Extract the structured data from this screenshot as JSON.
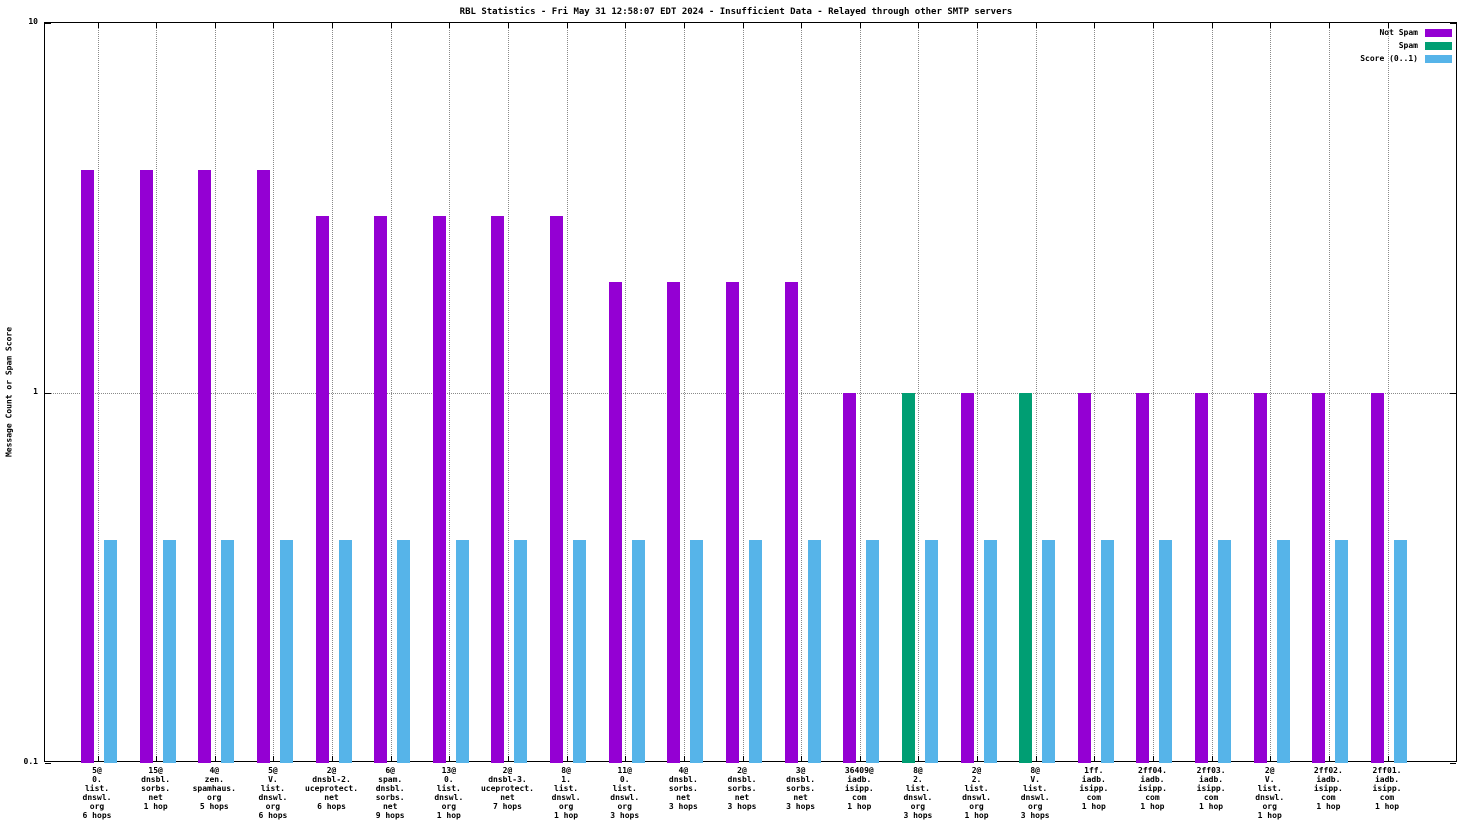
{
  "title": "RBL Statistics - Fri May 31 12:58:07 EDT 2024 - Insufficient Data - Relayed through other SMTP servers",
  "chart_data": {
    "type": "bar",
    "title": "RBL Statistics - Fri May 31 12:58:07 EDT 2024 - Insufficient Data - Relayed through other SMTP servers",
    "xlabel": "",
    "ylabel": "Message Count or Spam Score",
    "yscale": "log",
    "ylim": [
      0.1,
      10
    ],
    "yticks": [
      10,
      1,
      0.1
    ],
    "grid": true,
    "legend_position": "top-right",
    "categories": [
      "5@\n0.\nlist.\ndnswl.\norg\n6 hops",
      "15@\ndnsbl.\nsorbs.\nnet\n1 hop",
      "4@\nzen.\nspamhaus.\norg\n5 hops",
      "5@\nV.\nlist.\ndnswl.\norg\n6 hops",
      "2@\ndnsbl-2.\nuceprotect.\nnet\n6 hops",
      "6@\nspam.\ndnsbl.\nsorbs.\nnet\n9 hops",
      "13@\n0.\nlist.\ndnswl.\norg\n1 hop",
      "2@\ndnsbl-3.\nuceprotect.\nnet\n7 hops",
      "8@\n1.\nlist.\ndnswl.\norg\n1 hop",
      "11@\n0.\nlist.\ndnswl.\norg\n3 hops",
      "4@\ndnsbl.\nsorbs.\nnet\n3 hops",
      "2@\ndnsbl.\nsorbs.\nnet\n3 hops",
      "3@\ndnsbl.\nsorbs.\nnet\n3 hops",
      "36409@\niadb.\nisipp.\ncom\n1 hop",
      "8@\n2.\nlist.\ndnswl.\norg\n3 hops",
      "2@\n2.\nlist.\ndnswl.\norg\n1 hop",
      "8@\nV.\nlist.\ndnswl.\norg\n3 hops",
      "1ff.\niadb.\nisipp.\ncom\n1 hop",
      "2ff04.\niadb.\nisipp.\ncom\n1 hop",
      "2ff03.\niadb.\nisipp.\ncom\n1 hop",
      "2@\nV.\nlist.\ndnswl.\norg\n1 hop",
      "2ff02.\niadb.\nisipp.\ncom\n1 hop",
      "2ff01.\niadb.\nisipp.\ncom\n1 hop"
    ],
    "series": [
      {
        "name": "Not Spam",
        "color": "#9400d3",
        "values": [
          4,
          4,
          4,
          4,
          3,
          3,
          3,
          3,
          3,
          2,
          2,
          2,
          2,
          1,
          null,
          1,
          null,
          1,
          1,
          1,
          1,
          1,
          1
        ]
      },
      {
        "name": "Spam",
        "color": "#009e73",
        "values": [
          null,
          null,
          null,
          null,
          null,
          null,
          null,
          null,
          null,
          null,
          null,
          null,
          null,
          null,
          1,
          null,
          1,
          null,
          null,
          null,
          null,
          null,
          null
        ]
      },
      {
        "name": "Score (0..1)",
        "color": "#56b4e9",
        "values": [
          0.4,
          0.4,
          0.4,
          0.4,
          0.4,
          0.4,
          0.4,
          0.4,
          0.4,
          0.4,
          0.4,
          0.4,
          0.4,
          0.4,
          0.4,
          0.4,
          0.4,
          0.4,
          0.4,
          0.4,
          0.4,
          0.4,
          0.4
        ]
      }
    ]
  }
}
